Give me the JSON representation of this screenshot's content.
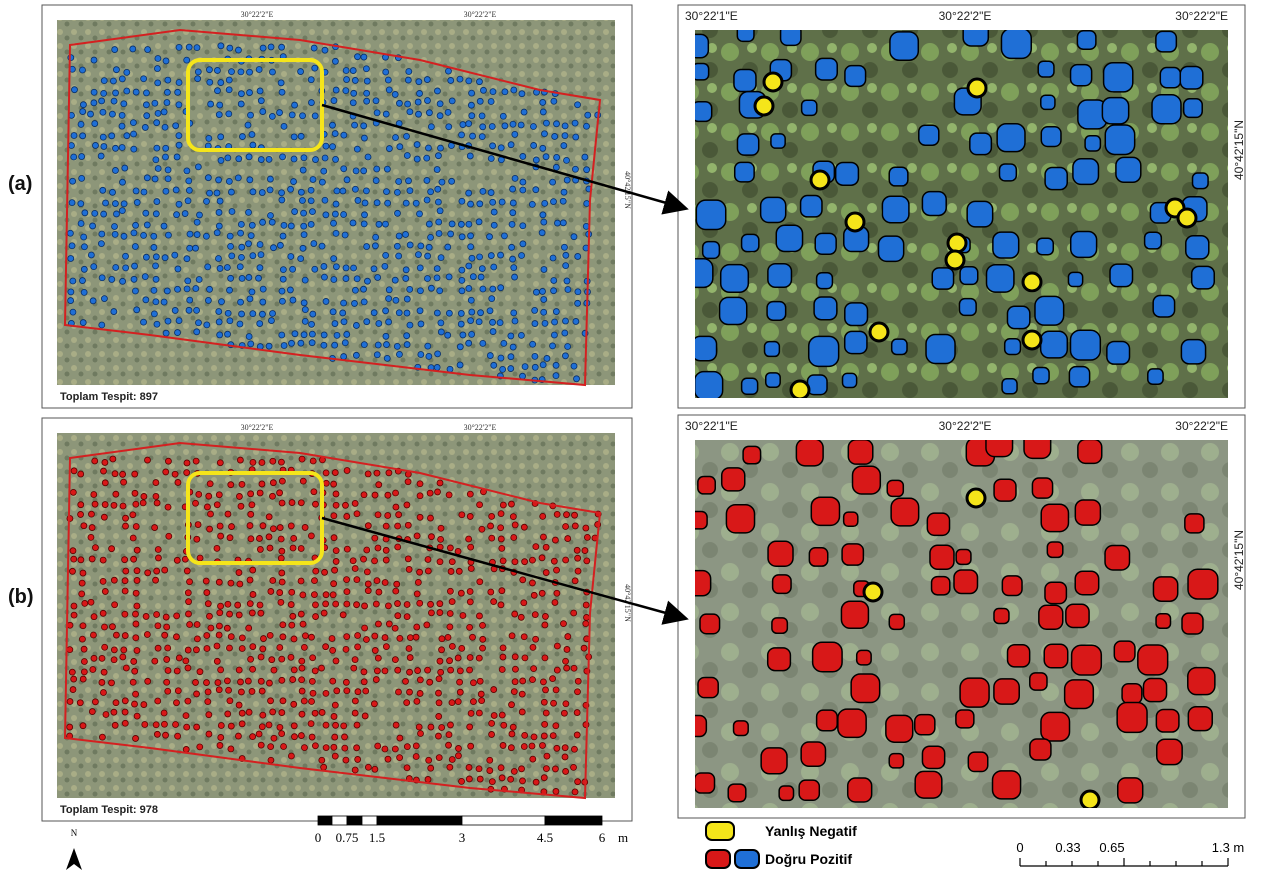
{
  "panels": [
    {
      "label": "(a)",
      "top_ticks": [
        "30°22'2\"E",
        "30°22'2\"E"
      ],
      "side_tick": "40°42'15\"N",
      "total": "Toplam Tespit: 897",
      "zoom_top_ticks": [
        "30°22'1\"E",
        "30°22'2\"E",
        "30°22'2\"E"
      ],
      "zoom_side_tick": "40°42'15\"N"
    },
    {
      "label": "(b)",
      "top_ticks": [
        "30°22'2\"E",
        "30°22'2\"E"
      ],
      "side_tick": "40°42'15\"N",
      "total": "Toplam Tespit: 978",
      "zoom_top_ticks": [
        "30°22'1\"E",
        "30°22'2\"E",
        "30°22'2\"E"
      ],
      "zoom_side_tick": "40°42'15\"N"
    }
  ],
  "north": "N",
  "scale_left": {
    "labels": [
      "0",
      "0.75",
      "1.5",
      "3",
      "4.5",
      "6"
    ],
    "unit": "m"
  },
  "legend": {
    "false_negative": "Yanlış Negatif",
    "true_positive": "Doğru Pozitif"
  },
  "scale_right": {
    "labels": [
      "0",
      "0.33",
      "0.65",
      "1.3 m"
    ]
  }
}
